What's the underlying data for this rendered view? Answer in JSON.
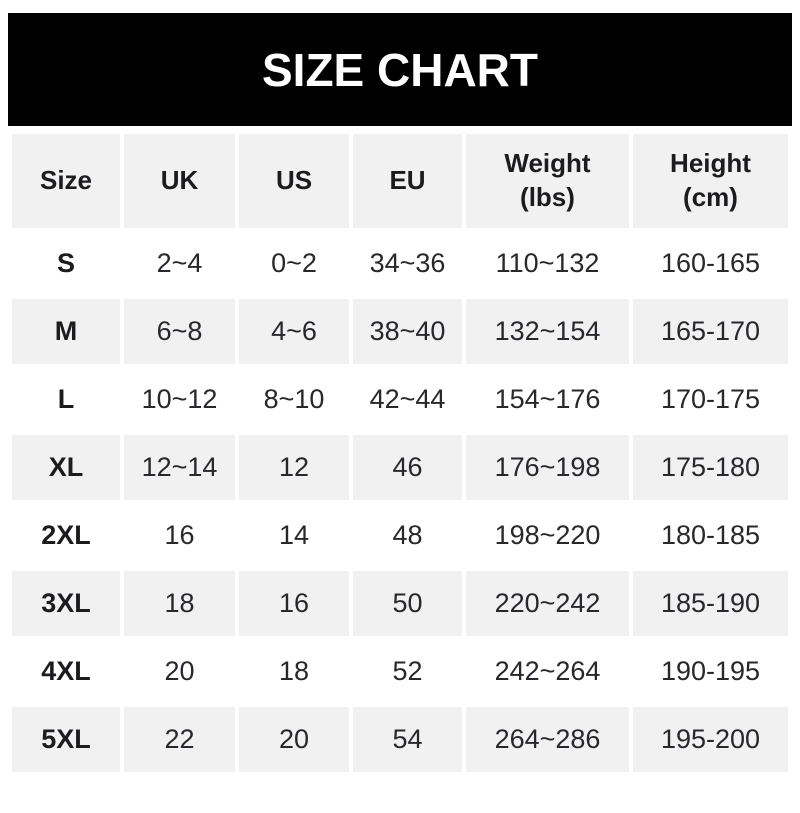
{
  "banner": {
    "title": "SIZE CHART"
  },
  "colors": {
    "banner_bg": "#000000",
    "banner_text": "#ffffff",
    "stripe_bg": "#f1f1f2",
    "text_dark": "#1c1c1f"
  },
  "chart_data": {
    "type": "table",
    "title": "SIZE CHART",
    "columns": [
      "Size",
      "UK",
      "US",
      "EU",
      "Weight (lbs)",
      "Height (cm)"
    ],
    "rows": [
      [
        "S",
        "2~4",
        "0~2",
        "34~36",
        "110~132",
        "160-165"
      ],
      [
        "M",
        "6~8",
        "4~6",
        "38~40",
        "132~154",
        "165-170"
      ],
      [
        "L",
        "10~12",
        "8~10",
        "42~44",
        "154~176",
        "170-175"
      ],
      [
        "XL",
        "12~14",
        "12",
        "46",
        "176~198",
        "175-180"
      ],
      [
        "2XL",
        "16",
        "14",
        "48",
        "198~220",
        "180-185"
      ],
      [
        "3XL",
        "18",
        "16",
        "50",
        "220~242",
        "185-190"
      ],
      [
        "4XL",
        "20",
        "18",
        "52",
        "242~264",
        "190-195"
      ],
      [
        "5XL",
        "22",
        "20",
        "54",
        "264~286",
        "195-200"
      ]
    ],
    "layout": {
      "header_background": "#f1f1f2",
      "stripe_even_rows": true,
      "range_separator_sizes": "~",
      "range_separator_height": "-"
    }
  }
}
